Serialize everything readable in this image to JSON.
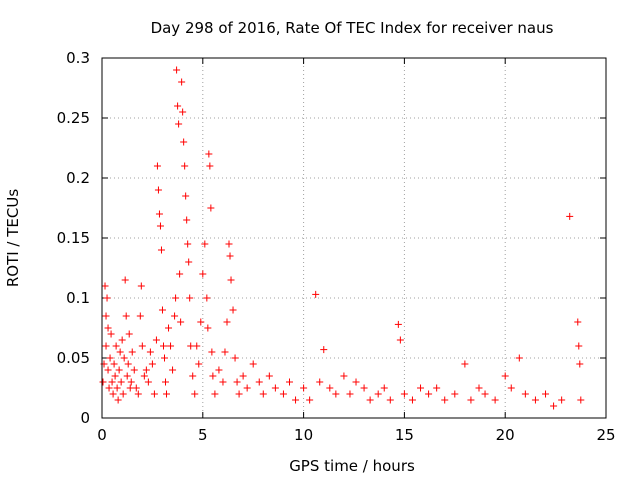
{
  "chart_data": {
    "type": "scatter",
    "title": "Day 298 of 2016, Rate Of TEC Index for receiver naus",
    "xlabel": "GPS time / hours",
    "ylabel": "ROTI / TECUs",
    "xlim": [
      0,
      25
    ],
    "ylim": [
      0,
      0.3
    ],
    "xticks": [
      0,
      5,
      10,
      15,
      20,
      25
    ],
    "yticks": [
      0,
      0.05,
      0.1,
      0.15,
      0.2,
      0.25,
      0.3
    ],
    "xtick_labels": [
      "0",
      "5",
      "10",
      "15",
      "20",
      "25"
    ],
    "ytick_labels": [
      "0",
      "0.05",
      "0.1",
      "0.15",
      "0.2",
      "0.25",
      "0.3"
    ],
    "grid": true,
    "marker": "+",
    "color": "#ff0000",
    "series": [
      {
        "name": "ROTI",
        "points": [
          [
            0.05,
            0.03
          ],
          [
            0.1,
            0.045
          ],
          [
            0.15,
            0.11
          ],
          [
            0.2,
            0.085
          ],
          [
            0.2,
            0.06
          ],
          [
            0.25,
            0.1
          ],
          [
            0.3,
            0.075
          ],
          [
            0.3,
            0.04
          ],
          [
            0.35,
            0.025
          ],
          [
            0.4,
            0.05
          ],
          [
            0.45,
            0.07
          ],
          [
            0.5,
            0.03
          ],
          [
            0.55,
            0.02
          ],
          [
            0.6,
            0.045
          ],
          [
            0.65,
            0.035
          ],
          [
            0.7,
            0.06
          ],
          [
            0.75,
            0.025
          ],
          [
            0.8,
            0.015
          ],
          [
            0.85,
            0.04
          ],
          [
            0.9,
            0.055
          ],
          [
            0.95,
            0.03
          ],
          [
            1.0,
            0.065
          ],
          [
            1.05,
            0.02
          ],
          [
            1.1,
            0.05
          ],
          [
            1.15,
            0.115
          ],
          [
            1.2,
            0.085
          ],
          [
            1.25,
            0.035
          ],
          [
            1.3,
            0.045
          ],
          [
            1.35,
            0.07
          ],
          [
            1.4,
            0.025
          ],
          [
            1.45,
            0.03
          ],
          [
            1.5,
            0.055
          ],
          [
            1.6,
            0.04
          ],
          [
            1.7,
            0.025
          ],
          [
            1.8,
            0.02
          ],
          [
            1.9,
            0.085
          ],
          [
            1.95,
            0.11
          ],
          [
            2.0,
            0.06
          ],
          [
            2.1,
            0.035
          ],
          [
            2.2,
            0.04
          ],
          [
            2.3,
            0.03
          ],
          [
            2.4,
            0.055
          ],
          [
            2.5,
            0.045
          ],
          [
            2.6,
            0.02
          ],
          [
            2.7,
            0.065
          ],
          [
            2.75,
            0.21
          ],
          [
            2.8,
            0.19
          ],
          [
            2.85,
            0.17
          ],
          [
            2.9,
            0.16
          ],
          [
            2.95,
            0.14
          ],
          [
            3.0,
            0.09
          ],
          [
            3.05,
            0.06
          ],
          [
            3.1,
            0.05
          ],
          [
            3.15,
            0.03
          ],
          [
            3.2,
            0.02
          ],
          [
            3.3,
            0.075
          ],
          [
            3.4,
            0.06
          ],
          [
            3.5,
            0.04
          ],
          [
            3.6,
            0.085
          ],
          [
            3.65,
            0.1
          ],
          [
            3.7,
            0.29
          ],
          [
            3.75,
            0.26
          ],
          [
            3.8,
            0.245
          ],
          [
            3.85,
            0.12
          ],
          [
            3.9,
            0.08
          ],
          [
            3.95,
            0.28
          ],
          [
            4.0,
            0.255
          ],
          [
            4.05,
            0.23
          ],
          [
            4.1,
            0.21
          ],
          [
            4.15,
            0.185
          ],
          [
            4.2,
            0.165
          ],
          [
            4.25,
            0.145
          ],
          [
            4.3,
            0.13
          ],
          [
            4.35,
            0.1
          ],
          [
            4.4,
            0.06
          ],
          [
            4.5,
            0.035
          ],
          [
            4.6,
            0.02
          ],
          [
            4.7,
            0.06
          ],
          [
            4.8,
            0.045
          ],
          [
            4.9,
            0.08
          ],
          [
            5.0,
            0.12
          ],
          [
            5.1,
            0.145
          ],
          [
            5.2,
            0.1
          ],
          [
            5.25,
            0.075
          ],
          [
            5.3,
            0.22
          ],
          [
            5.35,
            0.21
          ],
          [
            5.4,
            0.175
          ],
          [
            5.45,
            0.055
          ],
          [
            5.5,
            0.035
          ],
          [
            5.6,
            0.02
          ],
          [
            5.8,
            0.04
          ],
          [
            6.0,
            0.03
          ],
          [
            6.1,
            0.055
          ],
          [
            6.2,
            0.08
          ],
          [
            6.3,
            0.145
          ],
          [
            6.35,
            0.135
          ],
          [
            6.4,
            0.115
          ],
          [
            6.5,
            0.09
          ],
          [
            6.6,
            0.05
          ],
          [
            6.7,
            0.03
          ],
          [
            6.8,
            0.02
          ],
          [
            7.0,
            0.035
          ],
          [
            7.2,
            0.025
          ],
          [
            7.5,
            0.045
          ],
          [
            7.8,
            0.03
          ],
          [
            8.0,
            0.02
          ],
          [
            8.3,
            0.035
          ],
          [
            8.6,
            0.025
          ],
          [
            9.0,
            0.02
          ],
          [
            9.3,
            0.03
          ],
          [
            9.6,
            0.015
          ],
          [
            10.0,
            0.025
          ],
          [
            10.3,
            0.015
          ],
          [
            10.6,
            0.103
          ],
          [
            10.8,
            0.03
          ],
          [
            11.0,
            0.057
          ],
          [
            11.3,
            0.025
          ],
          [
            11.6,
            0.02
          ],
          [
            12.0,
            0.035
          ],
          [
            12.3,
            0.02
          ],
          [
            12.6,
            0.03
          ],
          [
            13.0,
            0.025
          ],
          [
            13.3,
            0.015
          ],
          [
            13.7,
            0.02
          ],
          [
            14.0,
            0.025
          ],
          [
            14.3,
            0.015
          ],
          [
            14.7,
            0.078
          ],
          [
            14.8,
            0.065
          ],
          [
            15.0,
            0.02
          ],
          [
            15.4,
            0.015
          ],
          [
            15.8,
            0.025
          ],
          [
            16.2,
            0.02
          ],
          [
            16.6,
            0.025
          ],
          [
            17.0,
            0.015
          ],
          [
            17.5,
            0.02
          ],
          [
            18.0,
            0.045
          ],
          [
            18.3,
            0.015
          ],
          [
            18.7,
            0.025
          ],
          [
            19.0,
            0.02
          ],
          [
            19.5,
            0.015
          ],
          [
            20.0,
            0.035
          ],
          [
            20.3,
            0.025
          ],
          [
            20.7,
            0.05
          ],
          [
            21.0,
            0.02
          ],
          [
            21.5,
            0.015
          ],
          [
            22.0,
            0.02
          ],
          [
            22.4,
            0.01
          ],
          [
            22.8,
            0.015
          ],
          [
            23.2,
            0.168
          ],
          [
            23.6,
            0.08
          ],
          [
            23.65,
            0.06
          ],
          [
            23.7,
            0.045
          ],
          [
            23.75,
            0.015
          ]
        ]
      }
    ]
  }
}
